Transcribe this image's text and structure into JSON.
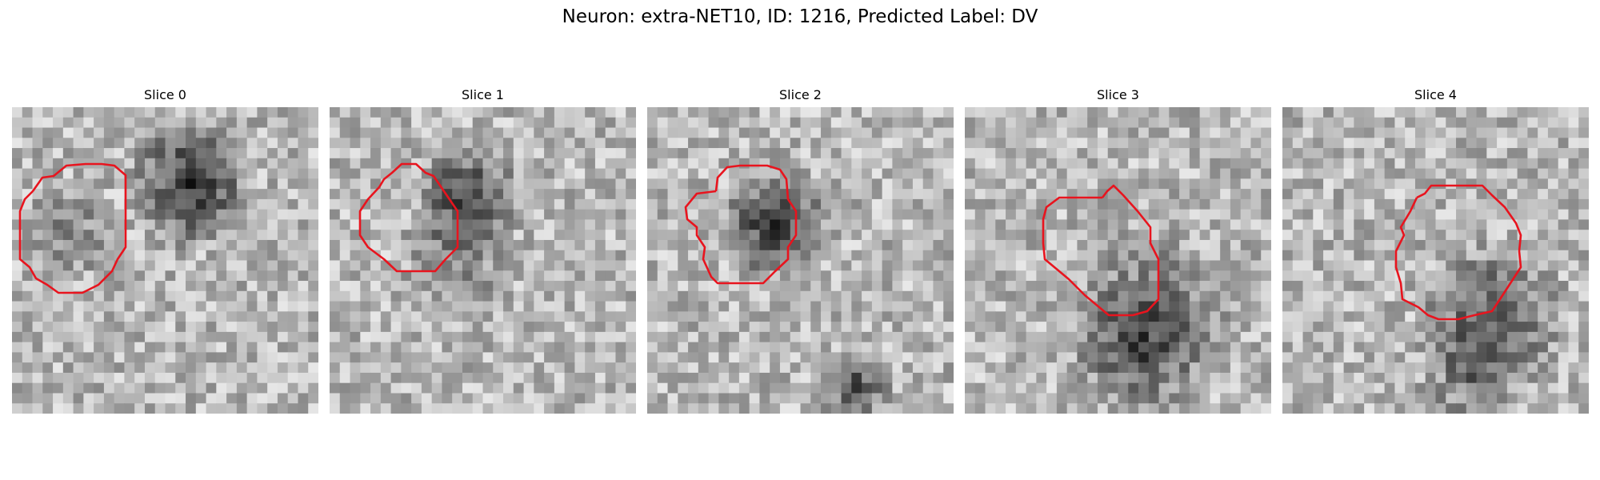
{
  "figure": {
    "title": "Neuron: extra-NET10, ID: 1216, Predicted Label: DV"
  },
  "panels": [
    {
      "title": "Slice 0"
    },
    {
      "title": "Slice 1"
    },
    {
      "title": "Slice 2"
    },
    {
      "title": "Slice 3"
    },
    {
      "title": "Slice 4"
    }
  ],
  "colors": {
    "contour": "#e8141e",
    "colormap": "grayscale"
  }
}
